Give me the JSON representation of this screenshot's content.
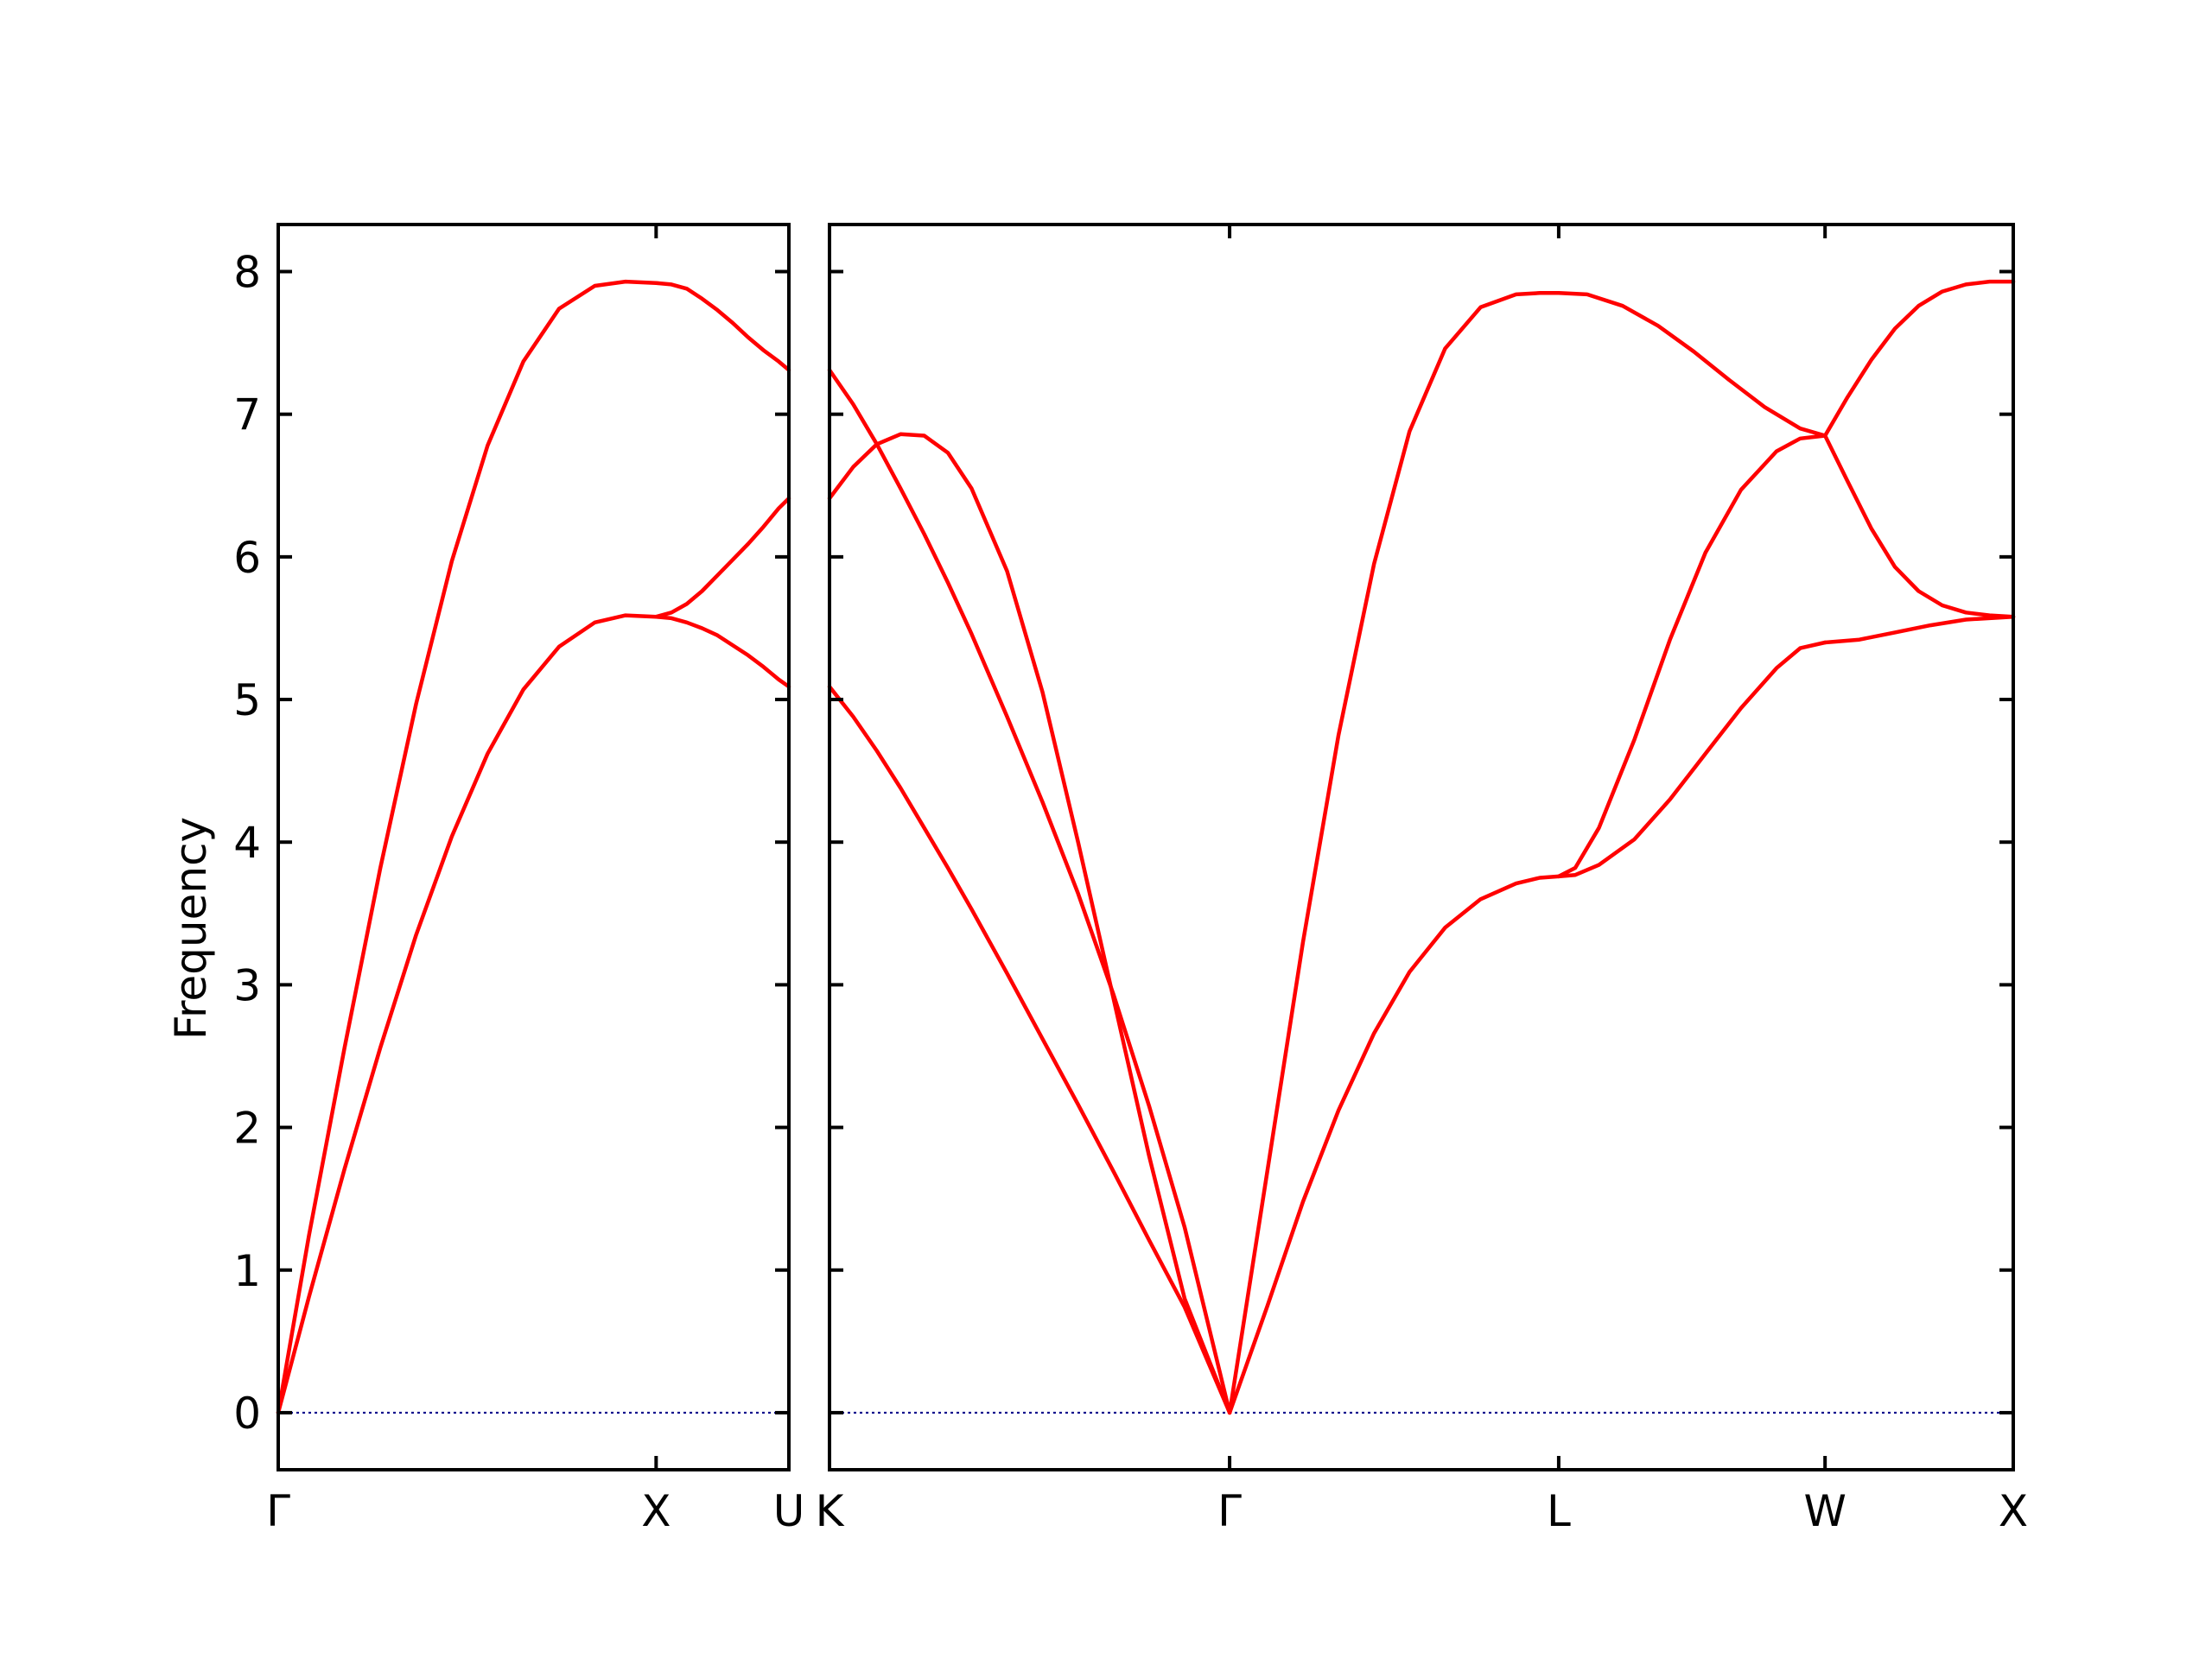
{
  "chart_data": {
    "type": "line",
    "ylabel": "Frequency",
    "ylim": [
      -0.4,
      8.33
    ],
    "yticks": [
      0,
      1,
      2,
      3,
      4,
      5,
      6,
      7,
      8
    ],
    "grid": false,
    "colors": {
      "band": "#ff0000",
      "zero_line": "#00008b",
      "axes": "#000000"
    },
    "panels": [
      {
        "id": "left",
        "xlim": [
          0,
          1.0
        ],
        "xticks": [
          {
            "x": 0.0,
            "label": "Γ"
          },
          {
            "x": 0.74,
            "label": "X"
          },
          {
            "x": 1.0,
            "label": "U"
          }
        ],
        "series": [
          {
            "x": [
              0,
              0.06,
              0.13,
              0.2,
              0.27,
              0.34,
              0.41,
              0.48,
              0.55,
              0.62,
              0.68,
              0.74
            ],
            "y": [
              0,
              1.24,
              2.56,
              3.82,
              4.97,
              5.97,
              6.78,
              7.37,
              7.74,
              7.9,
              7.93,
              7.92
            ]
          },
          {
            "x": [
              0,
              0.06,
              0.13,
              0.2,
              0.27,
              0.34,
              0.41,
              0.48,
              0.55,
              0.62,
              0.68,
              0.74
            ],
            "y": [
              0,
              0.81,
              1.71,
              2.56,
              3.35,
              4.04,
              4.62,
              5.07,
              5.37,
              5.54,
              5.59,
              5.58
            ]
          },
          {
            "x": [
              0.74,
              0.77,
              0.8,
              0.83,
              0.86,
              0.89,
              0.92,
              0.95,
              0.98,
              1.0
            ],
            "y": [
              7.92,
              7.91,
              7.88,
              7.81,
              7.73,
              7.64,
              7.54,
              7.45,
              7.37,
              7.31
            ]
          },
          {
            "x": [
              0.74,
              0.77,
              0.8,
              0.83,
              0.86,
              0.89,
              0.92,
              0.95,
              0.98,
              1.0
            ],
            "y": [
              5.58,
              5.61,
              5.67,
              5.76,
              5.87,
              5.98,
              6.09,
              6.21,
              6.34,
              6.41
            ]
          },
          {
            "x": [
              0.74,
              0.77,
              0.8,
              0.83,
              0.86,
              0.89,
              0.92,
              0.95,
              0.98,
              1.0
            ],
            "y": [
              5.58,
              5.57,
              5.54,
              5.5,
              5.45,
              5.38,
              5.31,
              5.23,
              5.14,
              5.09
            ]
          }
        ]
      },
      {
        "id": "right",
        "xlim": [
          0,
          1.0
        ],
        "xticks": [
          {
            "x": 0.0,
            "label": "K"
          },
          {
            "x": 0.338,
            "label": "Γ"
          },
          {
            "x": 0.616,
            "label": "L"
          },
          {
            "x": 0.841,
            "label": "W"
          },
          {
            "x": 1.0,
            "label": "X"
          }
        ],
        "series": [
          {
            "x": [
              0,
              0.02,
              0.04,
              0.06,
              0.08,
              0.1,
              0.12,
              0.15,
              0.18,
              0.21,
              0.24,
              0.27,
              0.3,
              0.338
            ],
            "y": [
              6.41,
              6.63,
              6.79,
              6.86,
              6.85,
              6.73,
              6.48,
              5.9,
              5.05,
              4.0,
              2.9,
              1.8,
              0.8,
              0
            ]
          },
          {
            "x": [
              0,
              0.02,
              0.04,
              0.06,
              0.08,
              0.1,
              0.12,
              0.15,
              0.18,
              0.21,
              0.24,
              0.27,
              0.3,
              0.338
            ],
            "y": [
              7.31,
              7.07,
              6.79,
              6.48,
              6.16,
              5.82,
              5.46,
              4.88,
              4.28,
              3.64,
              2.93,
              2.15,
              1.3,
              0
            ]
          },
          {
            "x": [
              0,
              0.02,
              0.04,
              0.06,
              0.08,
              0.1,
              0.12,
              0.15,
              0.18,
              0.21,
              0.24,
              0.27,
              0.3,
              0.338
            ],
            "y": [
              5.09,
              4.88,
              4.64,
              4.38,
              4.1,
              3.82,
              3.53,
              3.08,
              2.62,
              2.16,
              1.69,
              1.21,
              0.74,
              0
            ]
          },
          {
            "x": [
              0.338,
              0.37,
              0.4,
              0.43,
              0.46,
              0.49,
              0.52,
              0.55,
              0.58,
              0.6,
              0.616
            ],
            "y": [
              0,
              1.7,
              3.3,
              4.75,
              5.95,
              6.88,
              7.46,
              7.75,
              7.84,
              7.85,
              7.85
            ]
          },
          {
            "x": [
              0.338,
              0.37,
              0.4,
              0.43,
              0.46,
              0.49,
              0.52,
              0.55,
              0.58,
              0.6,
              0.616
            ],
            "y": [
              0,
              0.75,
              1.48,
              2.12,
              2.66,
              3.09,
              3.4,
              3.6,
              3.71,
              3.75,
              3.76
            ]
          },
          {
            "x": [
              0.616,
              0.64,
              0.67,
              0.7,
              0.73,
              0.76,
              0.79,
              0.82,
              0.841
            ],
            "y": [
              7.85,
              7.84,
              7.76,
              7.62,
              7.44,
              7.24,
              7.05,
              6.9,
              6.85
            ]
          },
          {
            "x": [
              0.616,
              0.63,
              0.65,
              0.68,
              0.71,
              0.74,
              0.77,
              0.8,
              0.82,
              0.841
            ],
            "y": [
              3.76,
              3.82,
              4.1,
              4.72,
              5.42,
              6.03,
              6.47,
              6.74,
              6.83,
              6.85
            ]
          },
          {
            "x": [
              0.616,
              0.63,
              0.65,
              0.68,
              0.71,
              0.74,
              0.77,
              0.8,
              0.82,
              0.841
            ],
            "y": [
              3.76,
              3.77,
              3.84,
              4.02,
              4.3,
              4.62,
              4.94,
              5.22,
              5.36,
              5.4
            ]
          },
          {
            "x": [
              0.841,
              0.86,
              0.88,
              0.9,
              0.92,
              0.94,
              0.96,
              0.98,
              1.0
            ],
            "y": [
              6.85,
              7.12,
              7.38,
              7.6,
              7.76,
              7.86,
              7.91,
              7.93,
              7.93
            ]
          },
          {
            "x": [
              0.841,
              0.86,
              0.88,
              0.9,
              0.92,
              0.94,
              0.96,
              0.98,
              1.0
            ],
            "y": [
              6.85,
              6.53,
              6.2,
              5.93,
              5.76,
              5.66,
              5.61,
              5.59,
              5.58
            ]
          },
          {
            "x": [
              0.841,
              0.87,
              0.9,
              0.93,
              0.96,
              1.0
            ],
            "y": [
              5.4,
              5.42,
              5.47,
              5.52,
              5.56,
              5.58
            ]
          }
        ]
      }
    ]
  }
}
